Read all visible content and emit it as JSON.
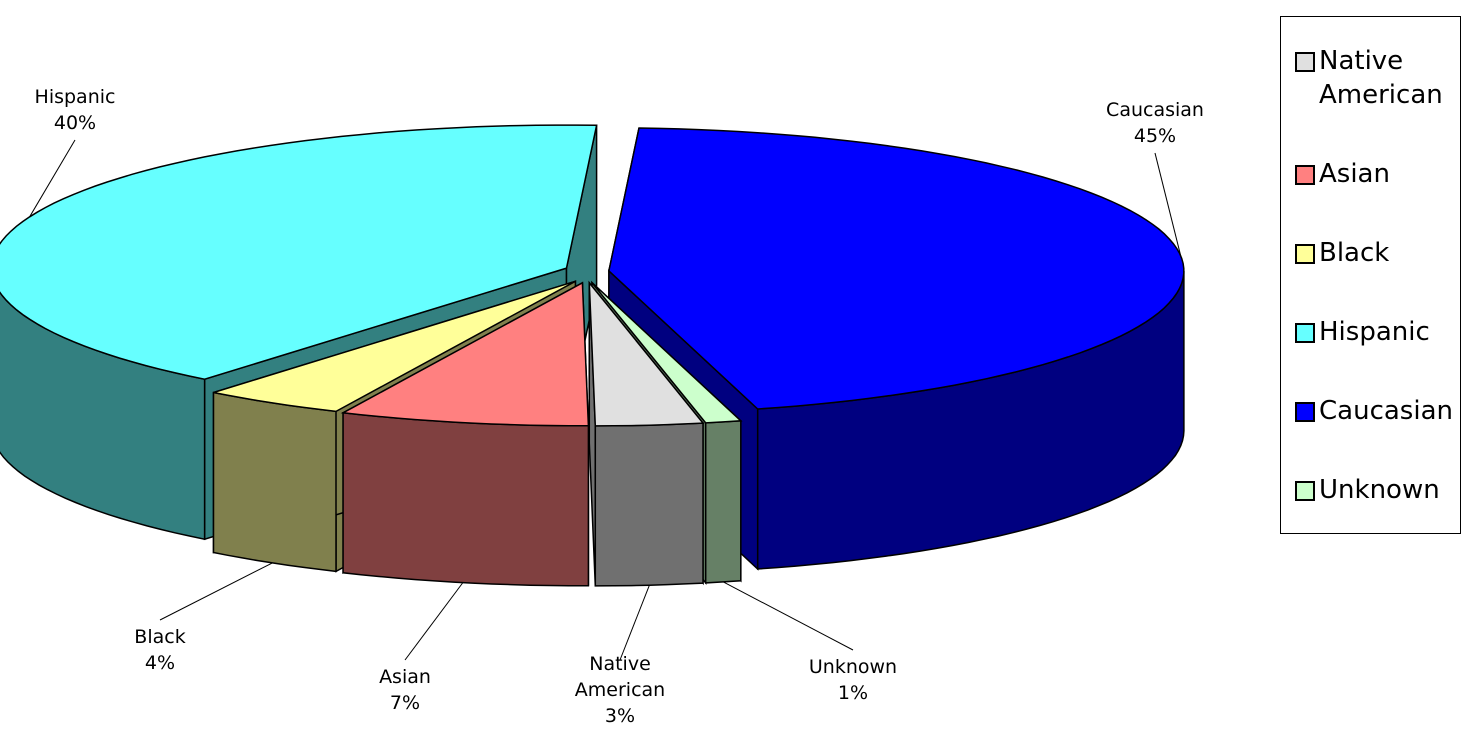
{
  "chart_data": {
    "type": "pie3d",
    "categories": [
      "Native American",
      "Asian",
      "Black",
      "Hispanic",
      "Caucasian",
      "Unknown"
    ],
    "values": [
      3,
      7,
      4,
      40,
      45,
      1
    ],
    "value_labels": [
      "3%",
      "7%",
      "4%",
      "40%",
      "45%",
      "1%"
    ],
    "colors": [
      "#e0e0e0",
      "#ff8080",
      "#ffff99",
      "#66ffff",
      "#0000ff",
      "#ccffcc"
    ],
    "legend": "right"
  }
}
